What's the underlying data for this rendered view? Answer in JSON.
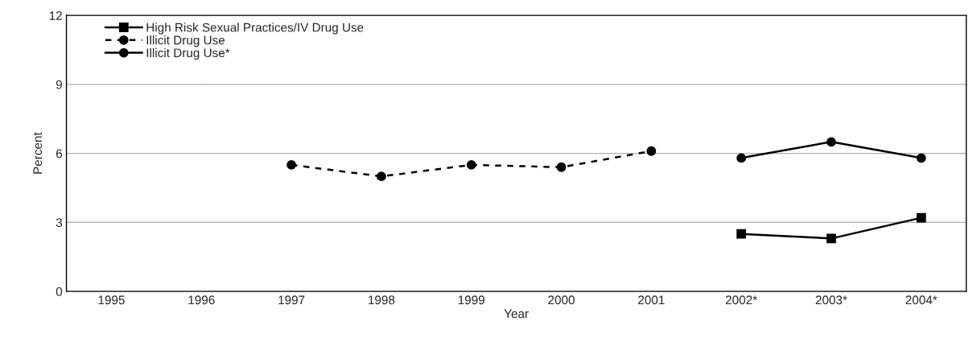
{
  "chart_data": {
    "type": "line",
    "xlabel": "Year",
    "ylabel": "Percent",
    "categories": [
      "1995",
      "1996",
      "1997",
      "1998",
      "1999",
      "2000",
      "2001",
      "2002*",
      "2003*",
      "2004*"
    ],
    "series": [
      {
        "name": "High Risk Sexual Practices/IV Drug Use",
        "color": "#000000",
        "marker": "square",
        "line_style": "solid",
        "values": [
          null,
          null,
          null,
          null,
          null,
          null,
          null,
          2.5,
          2.3,
          3.2
        ]
      },
      {
        "name": "Illicit Drug Use",
        "color": "#000000",
        "marker": "circle",
        "line_style": "dashed",
        "values": [
          null,
          null,
          5.5,
          5.0,
          5.5,
          5.4,
          6.1,
          null,
          null,
          null
        ]
      },
      {
        "name": "Illicit Drug Use*",
        "color": "#000000",
        "marker": "circle",
        "line_style": "solid",
        "values": [
          null,
          null,
          null,
          null,
          null,
          null,
          null,
          5.8,
          6.5,
          5.8
        ]
      }
    ],
    "ylim": [
      0,
      12
    ],
    "yticks": [
      0,
      3,
      6,
      9,
      12
    ],
    "grid": "y",
    "legend": "top left"
  }
}
